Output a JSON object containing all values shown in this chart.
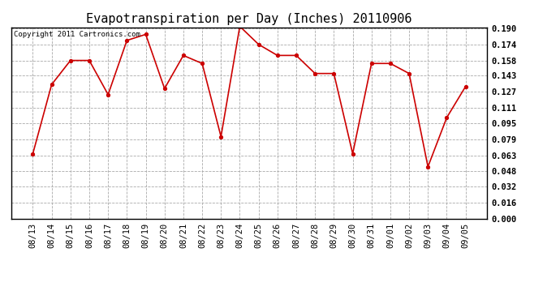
{
  "title": "Evapotranspiration per Day (Inches) 20110906",
  "copyright": "Copyright 2011 Cartronics.com",
  "dates": [
    "08/13",
    "08/14",
    "08/15",
    "08/16",
    "08/17",
    "08/18",
    "08/19",
    "08/20",
    "08/21",
    "08/22",
    "08/23",
    "08/24",
    "08/25",
    "08/26",
    "08/27",
    "08/28",
    "08/29",
    "08/30",
    "08/31",
    "09/01",
    "09/02",
    "09/03",
    "09/04",
    "09/05"
  ],
  "values": [
    0.065,
    0.134,
    0.158,
    0.158,
    0.124,
    0.178,
    0.184,
    0.13,
    0.163,
    0.155,
    0.082,
    0.192,
    0.174,
    0.163,
    0.163,
    0.145,
    0.145,
    0.065,
    0.155,
    0.155,
    0.145,
    0.052,
    0.101,
    0.132
  ],
  "line_color": "#cc0000",
  "marker": "o",
  "marker_size": 3,
  "ylim": [
    0.0,
    0.19
  ],
  "yticks": [
    0.0,
    0.016,
    0.032,
    0.048,
    0.063,
    0.079,
    0.095,
    0.111,
    0.127,
    0.143,
    0.158,
    0.174,
    0.19
  ],
  "background_color": "#ffffff",
  "grid_color": "#aaaaaa",
  "title_fontsize": 11,
  "copyright_fontsize": 6.5,
  "tick_fontsize": 7.5
}
